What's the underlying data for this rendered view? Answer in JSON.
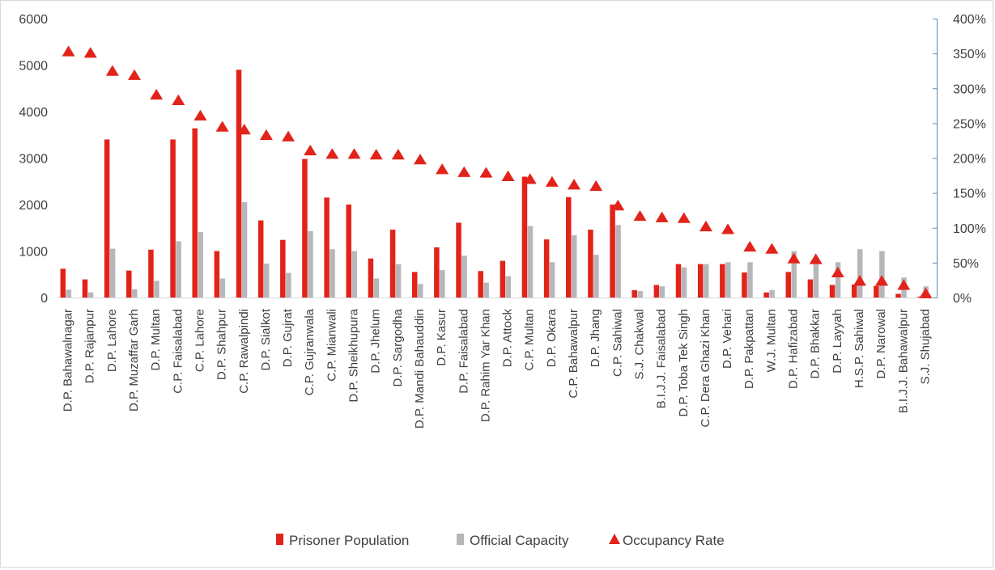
{
  "chart_data": {
    "type": "bar",
    "categories": [
      "D.P. Bahawalnagar",
      "D.P. Rajanpur",
      "D.P. Lahore",
      "D.P. Muzaffar Garh",
      "D.P. Multan",
      "C.P. Faisalabad",
      "C.P. Lahore",
      "D.P. Shahpur",
      "C.P. Rawalpindi",
      "D.P. Sialkot",
      "D.P. Gujrat",
      "C.P. Gujranwala",
      "C.P. Mianwali",
      "D.P. Sheikhupura",
      "D.P. Jhelum",
      "D.P. Sargodha",
      "D.P. Mandi Bahauddin",
      "D.P. Kasur",
      "D.P. Faisalabad",
      "D.P. Rahim Yar Khan",
      "D.P. Attock",
      "C.P. Multan",
      "D.P. Okara",
      "C.P. Bahawalpur",
      "D.P. Jhang",
      "C.P. Sahiwal",
      "S.J. Chakwal",
      "B.I.J.J. Faisalabad",
      "D.P. Toba Tek Singh",
      "C.P. Dera Ghazi Khan",
      "D.P. Vehari",
      "D.P. Pakpattan",
      "W.J. Multan",
      "D.P. Hafizabad",
      "D.P. Bhakkar",
      "D.P. Layyah",
      "H.S.P. Sahiwal",
      "D.P. Narowal",
      "B.I.J.J. Bahawalpur",
      "S.J. Shujabad"
    ],
    "series": [
      {
        "name": "Prisoner Population",
        "color": "#e2231a",
        "axis": "left",
        "values": [
          620,
          390,
          3400,
          580,
          1030,
          3400,
          3640,
          1000,
          4900,
          1660,
          1240,
          2980,
          2150,
          2000,
          840,
          1460,
          550,
          1080,
          1610,
          570,
          790,
          2600,
          1250,
          2160,
          1460,
          2000,
          160,
          270,
          720,
          720,
          720,
          540,
          110,
          550,
          390,
          270,
          280,
          250,
          80,
          20
        ]
      },
      {
        "name": "Official Capacity",
        "color": "#b7b7bb",
        "axis": "left",
        "values": [
          170,
          110,
          1050,
          180,
          360,
          1210,
          1410,
          410,
          2050,
          730,
          530,
          1430,
          1040,
          1000,
          410,
          720,
          290,
          590,
          900,
          320,
          460,
          1540,
          760,
          1340,
          920,
          1560,
          140,
          240,
          650,
          720,
          760,
          760,
          160,
          1000,
          750,
          760,
          1040,
          1000,
          430,
          240
        ]
      },
      {
        "name": "Occupancy Rate",
        "color": "#e2231a",
        "axis": "right",
        "values": [
          3.52,
          3.5,
          3.24,
          3.18,
          2.9,
          2.82,
          2.6,
          2.44,
          2.4,
          2.32,
          2.3,
          2.1,
          2.05,
          2.05,
          2.04,
          2.04,
          1.97,
          1.83,
          1.79,
          1.78,
          1.73,
          1.69,
          1.65,
          1.61,
          1.59,
          1.31,
          1.16,
          1.14,
          1.13,
          1.01,
          0.97,
          0.72,
          0.69,
          0.55,
          0.54,
          0.35,
          0.23,
          0.23,
          0.17,
          0.05
        ]
      }
    ],
    "left_axis": {
      "ylim": [
        0,
        6000
      ],
      "ticks": [
        "0",
        "1000",
        "2000",
        "3000",
        "4000",
        "5000",
        "6000"
      ]
    },
    "right_axis": {
      "ylim": [
        0,
        4
      ],
      "ticks": [
        "0%",
        "50%",
        "100%",
        "150%",
        "200%",
        "250%",
        "300%",
        "350%",
        "400%"
      ]
    },
    "title": "",
    "xlabel": "",
    "ylabel": "",
    "legend_position": "bottom",
    "grid": false
  }
}
